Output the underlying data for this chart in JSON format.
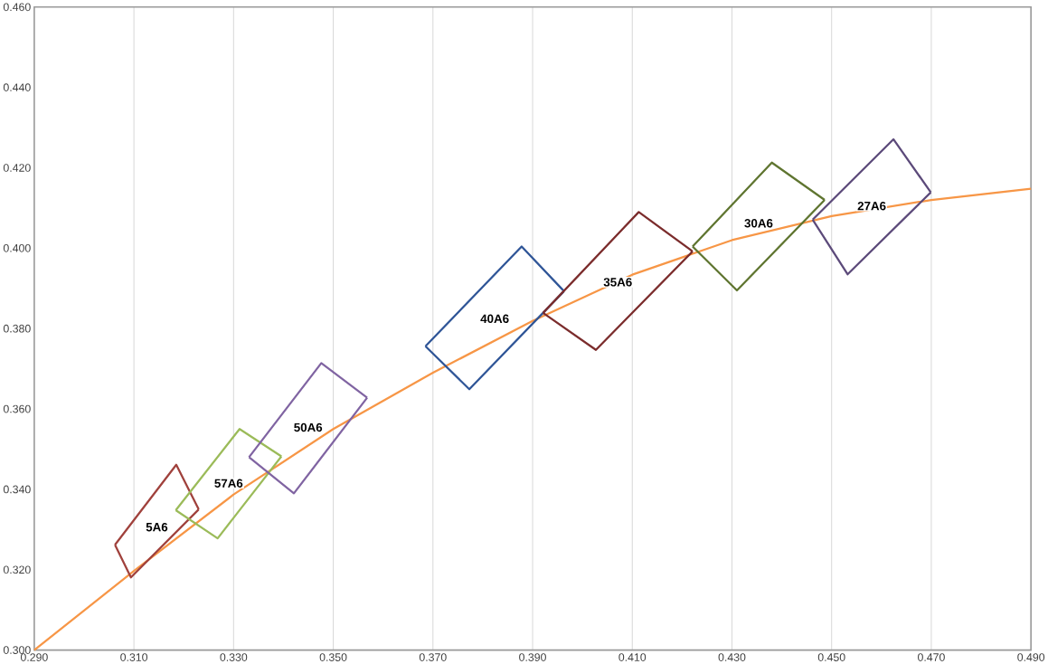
{
  "chart_data": {
    "type": "line",
    "grid": "x",
    "marker": "none",
    "line_style": "solid",
    "xlim": [
      0.29,
      0.49
    ],
    "ylim": [
      0.3,
      0.46
    ],
    "xticks": [
      {
        "value": 0.29,
        "label": "0.290"
      },
      {
        "value": 0.31,
        "label": "0.310"
      },
      {
        "value": 0.33,
        "label": "0.330"
      },
      {
        "value": 0.35,
        "label": "0.350"
      },
      {
        "value": 0.37,
        "label": "0.370"
      },
      {
        "value": 0.39,
        "label": "0.390"
      },
      {
        "value": 0.41,
        "label": "0.410"
      },
      {
        "value": 0.43,
        "label": "0.430"
      },
      {
        "value": 0.45,
        "label": "0.450"
      },
      {
        "value": 0.47,
        "label": "0.470"
      },
      {
        "value": 0.49,
        "label": "0.490"
      }
    ],
    "yticks": [
      {
        "value": 0.3,
        "label": "0.300"
      },
      {
        "value": 0.32,
        "label": "0.320"
      },
      {
        "value": 0.34,
        "label": "0.340"
      },
      {
        "value": 0.36,
        "label": "0.360"
      },
      {
        "value": 0.38,
        "label": "0.380"
      },
      {
        "value": 0.4,
        "label": "0.400"
      },
      {
        "value": 0.42,
        "label": "0.420"
      },
      {
        "value": 0.44,
        "label": "0.440"
      },
      {
        "value": 0.46,
        "label": "0.460"
      }
    ],
    "series": [
      {
        "color": "#f79646",
        "x": [
          0.29,
          0.31,
          0.33,
          0.35,
          0.37,
          0.39,
          0.41,
          0.43,
          0.45,
          0.47,
          0.49
        ],
        "values": [
          0.3,
          0.3197,
          0.3387,
          0.355,
          0.369,
          0.3819,
          0.3934,
          0.402,
          0.408,
          0.412,
          0.4148
        ]
      },
      {
        "name": "5A6",
        "color": "#a0413c",
        "x": [
          0.3062,
          0.3185,
          0.323
        ],
        "values": [
          0.3262,
          0.3461,
          0.335
        ]
      },
      {
        "color": "#a0413c",
        "x": [
          0.3062,
          0.3094,
          0.323
        ],
        "values": [
          0.3262,
          0.3181,
          0.335
        ]
      },
      {
        "name": "57A6",
        "color": "#9bbb59",
        "x": [
          0.3184,
          0.3312,
          0.3396
        ],
        "values": [
          0.3348,
          0.355,
          0.3482
        ]
      },
      {
        "color": "#9bbb59",
        "x": [
          0.3184,
          0.3268,
          0.3396
        ],
        "values": [
          0.3348,
          0.3278,
          0.3482
        ]
      },
      {
        "name": "50A6",
        "color": "#8064a2",
        "x": [
          0.3331,
          0.3476,
          0.3568
        ],
        "values": [
          0.348,
          0.3714,
          0.3628
        ]
      },
      {
        "color": "#8064a2",
        "x": [
          0.3331,
          0.3421,
          0.3568
        ],
        "values": [
          0.348,
          0.339,
          0.3628
        ]
      },
      {
        "name": "40A6",
        "color": "#2f5597",
        "x": [
          0.3685,
          0.3878,
          0.3963
        ],
        "values": [
          0.3756,
          0.4004,
          0.3893
        ]
      },
      {
        "color": "#2f5597",
        "x": [
          0.3685,
          0.3773,
          0.3963
        ],
        "values": [
          0.3756,
          0.3649,
          0.3893
        ]
      },
      {
        "name": "35A6",
        "color": "#7b2c2c",
        "x": [
          0.3921,
          0.4113,
          0.4221
        ],
        "values": [
          0.3839,
          0.409,
          0.3992
        ]
      },
      {
        "color": "#7b2c2c",
        "x": [
          0.3921,
          0.4027,
          0.4221
        ],
        "values": [
          0.3839,
          0.3747,
          0.3992
        ]
      },
      {
        "name": "30A6",
        "color": "#5f7530",
        "x": [
          0.4221,
          0.438,
          0.4486
        ],
        "values": [
          0.4004,
          0.4213,
          0.412
        ]
      },
      {
        "color": "#5f7530",
        "x": [
          0.4221,
          0.431,
          0.4486
        ],
        "values": [
          0.4004,
          0.3895,
          0.412
        ]
      },
      {
        "name": "27A6",
        "color": "#5c4a7a",
        "x": [
          0.4462,
          0.4624,
          0.4699
        ],
        "values": [
          0.4071,
          0.4271,
          0.4139
        ]
      },
      {
        "color": "#5c4a7a",
        "x": [
          0.4462,
          0.4532,
          0.4699
        ],
        "values": [
          0.4071,
          0.3935,
          0.4139
        ]
      }
    ]
  }
}
